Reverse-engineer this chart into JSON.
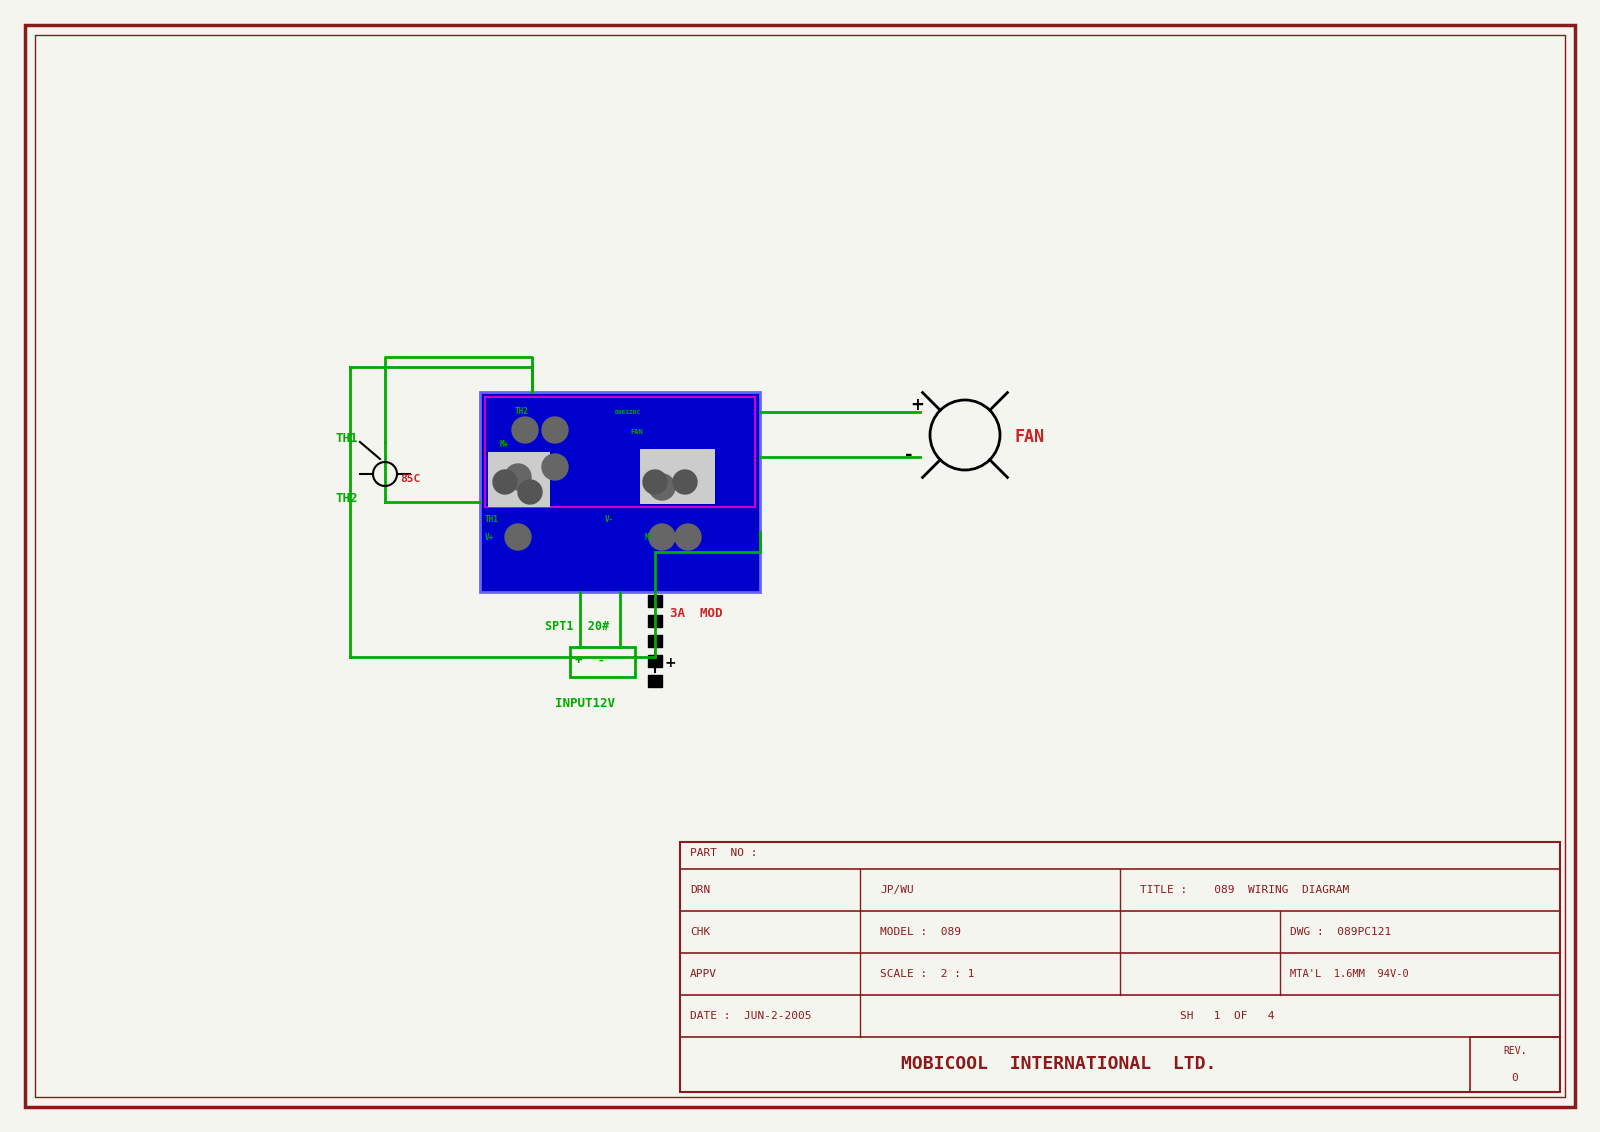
{
  "bg_color": "#f5f5f0",
  "border_color": "#cc2222",
  "green": "#00aa00",
  "blue": "#0000cc",
  "red": "#cc2222",
  "dark_red": "#8b1a1a",
  "black": "#000000",
  "gray": "#888888",
  "white": "#ffffff",
  "title_text": "MOBICOOL  INTERNATIONAL  LTD.",
  "part_no": "PART  NO :",
  "drn_label": "DRN",
  "drn_val": "JP/WU",
  "chk_label": "CHK",
  "appv_label": "APPV",
  "date_label": "DATE :",
  "date_val": "JUN-2-2005",
  "title_label": "TITLE :",
  "title_val": "089  WIRING  DIAGRAM",
  "model_label": "MODEL :",
  "model_val": "089",
  "dwg_label": "DWG :",
  "dwg_val": "089PC121",
  "scale_label": "SCALE :",
  "scale_val": "2 : 1",
  "mtal_label": "MTA'L  1.6MM  94V-0",
  "sh_label": "SH   1  OF   4",
  "rev_label": "REV.",
  "rev_val": "0",
  "th1_label": "TH1",
  "th2_label": "TH2",
  "temp_label": "85C",
  "spt1_label": "SPT1  20#",
  "input_label": "INPUT12V",
  "mod_label": "3A  MOD",
  "fan_label": "FAN"
}
